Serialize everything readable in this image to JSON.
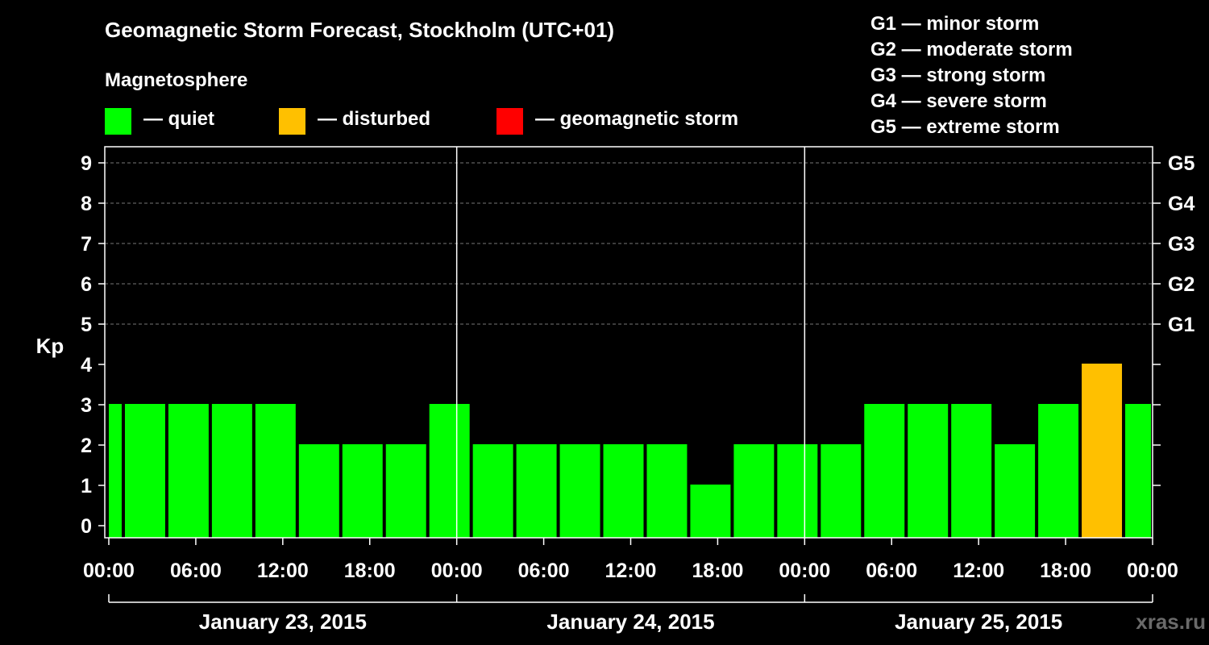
{
  "title": "Geomagnetic Storm Forecast, Stockholm (UTC+01)",
  "subtitle": "Magnetosphere",
  "legend": [
    {
      "label": "— quiet",
      "color": "#00ff00"
    },
    {
      "label": "— disturbed",
      "color": "#ffc000"
    },
    {
      "label": "— geomagnetic storm",
      "color": "#ff0000"
    }
  ],
  "storm_scale": [
    "G1 — minor storm",
    "G2 — moderate storm",
    "G3 — strong storm",
    "G4 — severe storm",
    "G5 — extreme storm"
  ],
  "watermark": "xras.ru",
  "chart_data": {
    "type": "bar",
    "ylabel": "Kp",
    "ylim": [
      0,
      9
    ],
    "y_ticks": [
      "0",
      "1",
      "2",
      "3",
      "4",
      "5",
      "6",
      "7",
      "8",
      "9"
    ],
    "right_ticks": [
      {
        "value": 5,
        "label": "G1"
      },
      {
        "value": 6,
        "label": "G2"
      },
      {
        "value": 7,
        "label": "G3"
      },
      {
        "value": 8,
        "label": "G4"
      },
      {
        "value": 9,
        "label": "G5"
      }
    ],
    "x_tick_labels": [
      "00:00",
      "06:00",
      "12:00",
      "18:00",
      "00:00",
      "06:00",
      "12:00",
      "18:00",
      "00:00",
      "06:00",
      "12:00",
      "18:00",
      "00:00"
    ],
    "day_labels": [
      "January 23, 2015",
      "January 24, 2015",
      "January 25, 2015"
    ],
    "grid": "dashed horizontal at Kp 5-9",
    "values": [
      3,
      3,
      3,
      3,
      3,
      2,
      2,
      2,
      3,
      2,
      2,
      2,
      2,
      2,
      1,
      2,
      2,
      2,
      3,
      3,
      3,
      2,
      3,
      4,
      3
    ],
    "bar_status": [
      "quiet",
      "quiet",
      "quiet",
      "quiet",
      "quiet",
      "quiet",
      "quiet",
      "quiet",
      "quiet",
      "quiet",
      "quiet",
      "quiet",
      "quiet",
      "quiet",
      "quiet",
      "quiet",
      "quiet",
      "quiet",
      "quiet",
      "quiet",
      "quiet",
      "quiet",
      "quiet",
      "disturbed",
      "quiet"
    ]
  }
}
